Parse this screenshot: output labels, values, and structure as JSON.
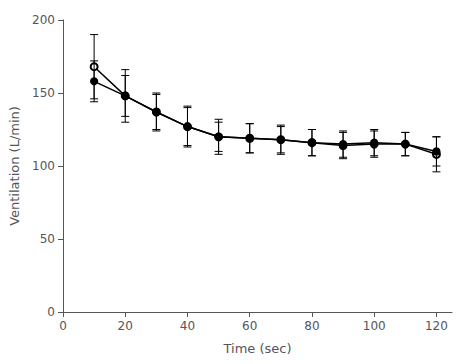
{
  "chart_data": {
    "type": "line",
    "xlabel": "Time (sec)",
    "ylabel": "Ventilation (L/min)",
    "x": [
      10,
      20,
      30,
      40,
      50,
      60,
      70,
      80,
      90,
      100,
      110,
      120
    ],
    "series": [
      {
        "color": "#000000",
        "marker": "emptyCircle",
        "values": [
          168,
          148,
          137,
          127,
          120,
          119,
          118,
          116,
          114,
          115,
          115,
          108
        ],
        "errors": [
          22,
          18,
          12,
          14,
          12,
          10,
          10,
          9,
          9,
          9,
          8,
          12
        ]
      },
      {
        "color": "#000000",
        "marker": "circle",
        "values": [
          158,
          148,
          137,
          127,
          120,
          119,
          118,
          116,
          115,
          116,
          115,
          110
        ],
        "errors": [
          14,
          14,
          13,
          13,
          10,
          10,
          9,
          9,
          9,
          9,
          8,
          10
        ]
      }
    ],
    "xlim": [
      0,
      125
    ],
    "ylim": [
      0,
      200
    ],
    "xticks": [
      0,
      20,
      40,
      60,
      80,
      100,
      120
    ],
    "yticks": [
      0,
      50,
      100,
      150,
      200
    ],
    "grid": false
  }
}
